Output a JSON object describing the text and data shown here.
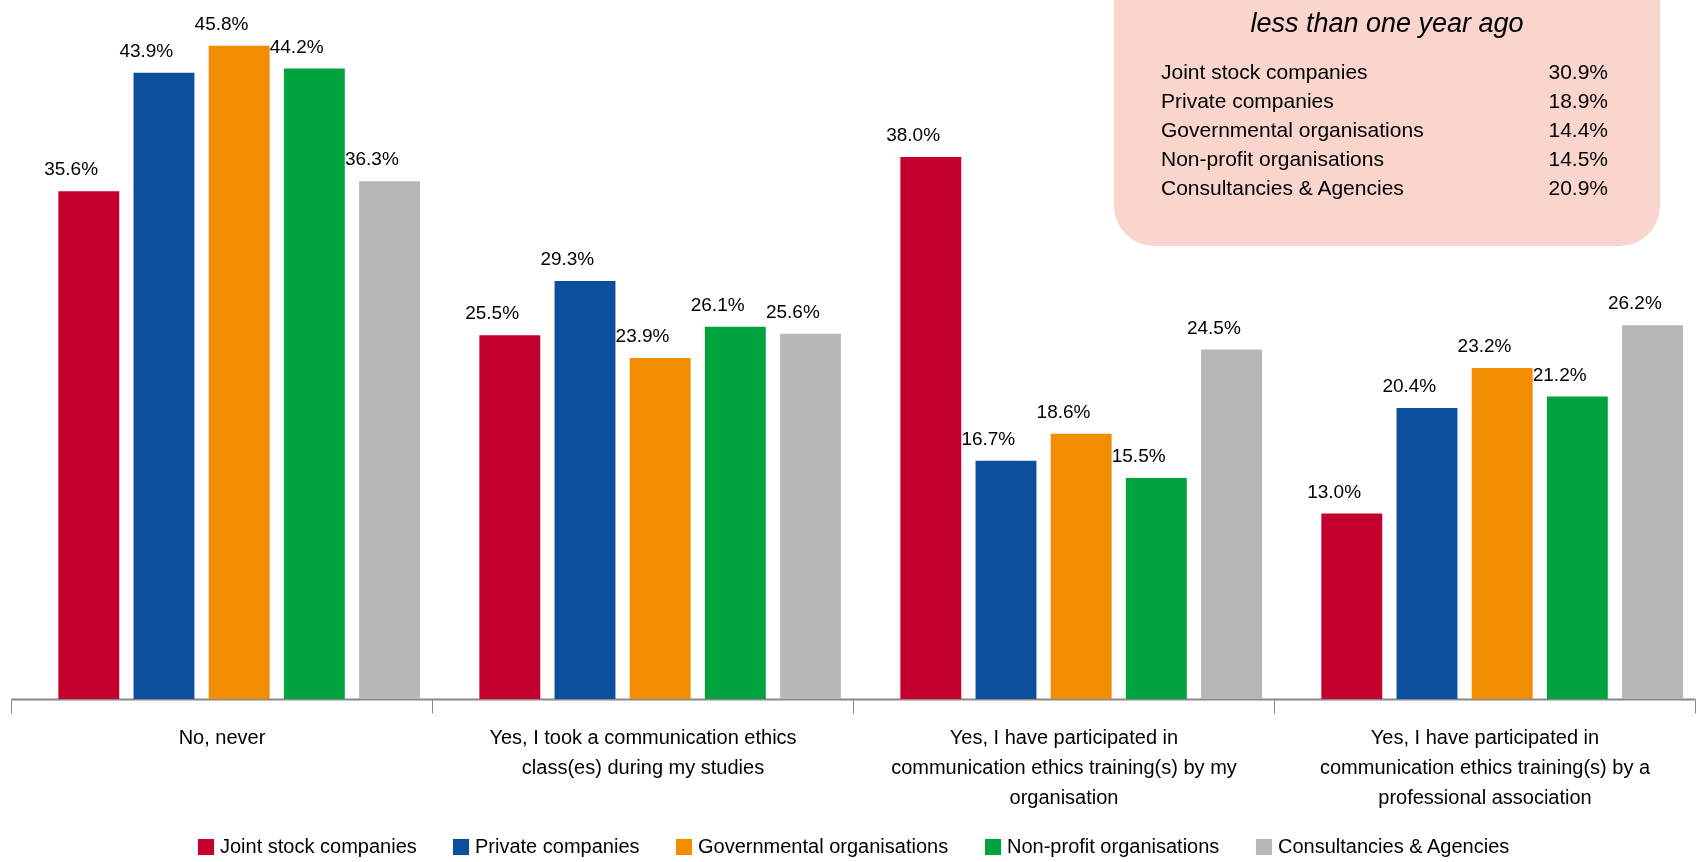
{
  "chart_data": {
    "type": "bar",
    "categories": [
      "No, never",
      "Yes, I took a communication ethics class(es) during my studies",
      "Yes, I have participated in communication ethics training(s) by my organisation",
      "Yes, I have participated in communication ethics training(s) by a professional association"
    ],
    "series": [
      {
        "name": "Joint stock companies",
        "color": "#c4002f",
        "values": [
          35.6,
          25.5,
          38.0,
          13.0
        ],
        "value_labels": [
          "35.6%",
          "25.5%",
          "38.0%",
          "13.0%"
        ]
      },
      {
        "name": "Private companies",
        "color": "#0c4f9c",
        "values": [
          43.9,
          29.3,
          16.7,
          20.4
        ],
        "value_labels": [
          "43.9%",
          "29.3%",
          "16.7%",
          "20.4%"
        ]
      },
      {
        "name": "Governmental organisations",
        "color": "#f28c00",
        "values": [
          45.8,
          23.9,
          18.6,
          23.2
        ],
        "value_labels": [
          "45.8%",
          "23.9%",
          "18.6%",
          "23.2%"
        ]
      },
      {
        "name": "Non-profit organisations",
        "color": "#00a33e",
        "values": [
          44.2,
          26.1,
          15.5,
          21.2
        ],
        "value_labels": [
          "44.2%",
          "26.1%",
          "15.5%",
          "21.2%"
        ]
      },
      {
        "name": "Consultancies & Agencies",
        "color": "#b7b7b7",
        "values": [
          36.3,
          25.6,
          24.5,
          26.2
        ],
        "value_labels": [
          "36.3%",
          "25.6%",
          "24.5%",
          "26.2%"
        ]
      }
    ],
    "legend": "bottom",
    "grid": false,
    "annotations": [
      "less than one year ago",
      "Joint stock companies 30.9%",
      "Private companies 18.9%",
      "Governmental organisations 14.4%",
      "Non-profit organisations 14.5%",
      "Consultancies & Agencies 20.9%"
    ]
  }
}
